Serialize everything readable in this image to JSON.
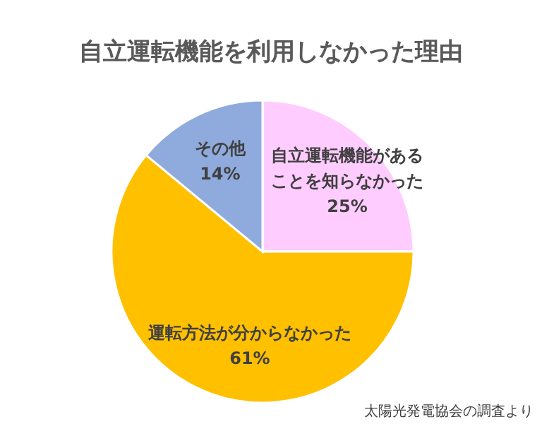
{
  "chart_data": {
    "type": "pie",
    "title": "自立運転機能を利用しなかった理由",
    "categories": [
      "自立運転機能があることを知らなかった",
      "運転方法が分からなかった",
      "その他"
    ],
    "values": [
      25,
      61,
      14
    ],
    "colors": [
      "#ffccff",
      "#ffc000",
      "#8faadc"
    ],
    "value_labels": [
      "25%",
      "61%",
      "14%"
    ],
    "annotations": [
      "太陽光発電協会の調査より"
    ]
  }
}
